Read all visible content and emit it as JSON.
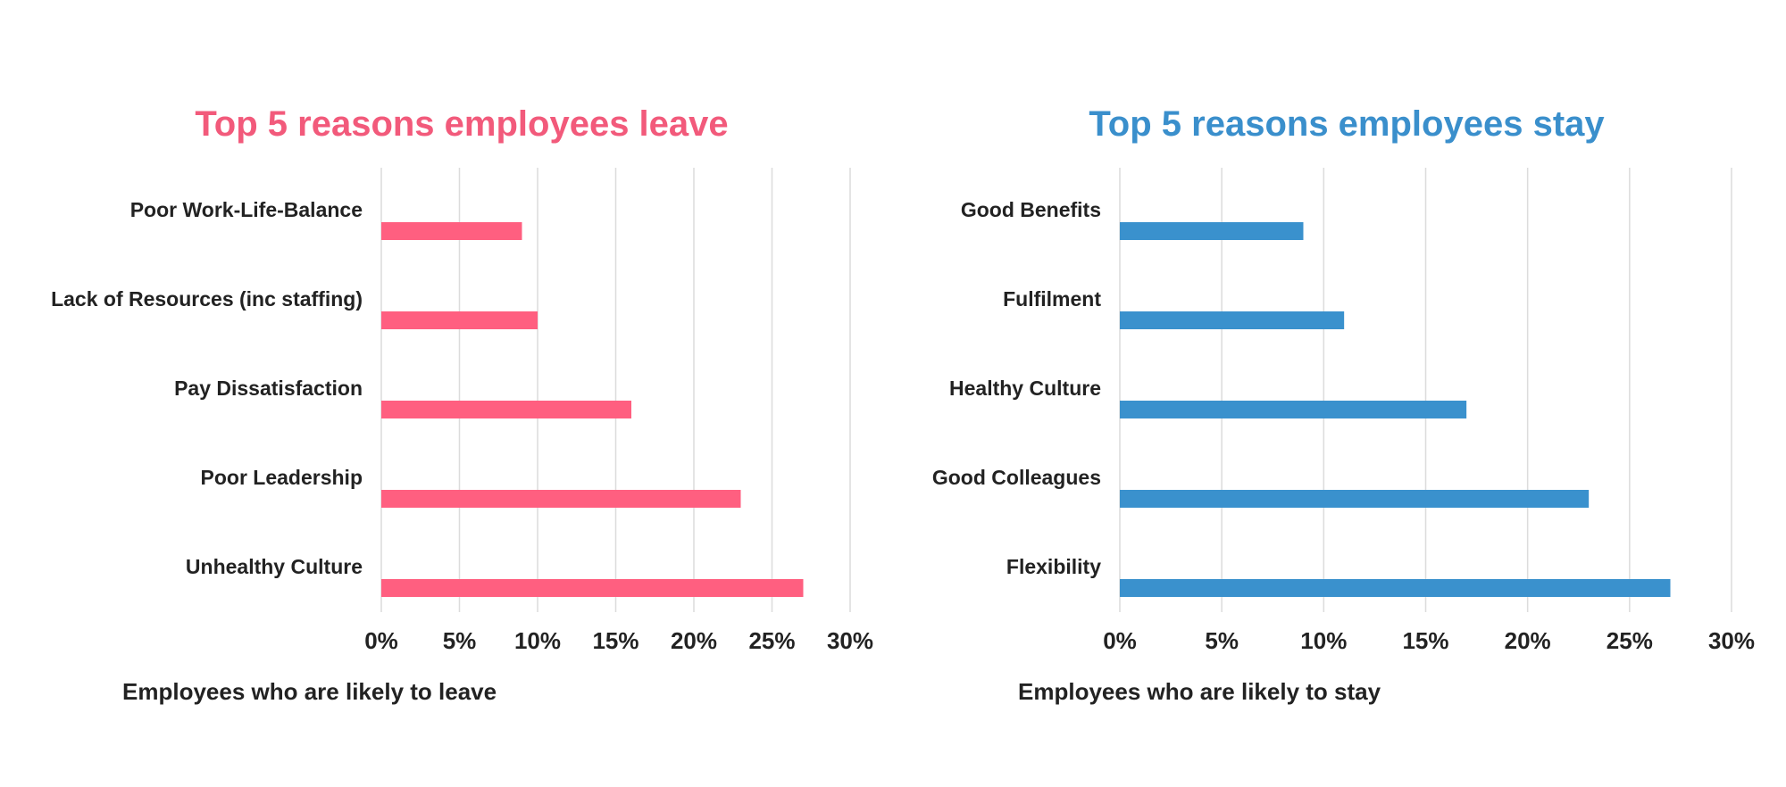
{
  "chart_data": [
    {
      "type": "bar",
      "orientation": "horizontal",
      "title": "Top 5 reasons employees leave",
      "xlabel": "Employees who are likely to leave",
      "ylabel": "",
      "categories": [
        "Poor Work-Life-Balance",
        "Lack of Resources (inc staffing)",
        "Pay Dissatisfaction",
        "Poor Leadership",
        "Unhealthy Culture"
      ],
      "values": [
        9,
        10,
        16,
        23,
        27
      ],
      "unit": "%",
      "xlim": [
        0,
        30
      ],
      "ticks": [
        "0%",
        "5%",
        "10%",
        "15%",
        "20%",
        "25%",
        "30%"
      ],
      "grid": "vertical",
      "legend": "none",
      "colors": {
        "bar": "#ff5f80",
        "title": "#f25a7b"
      }
    },
    {
      "type": "bar",
      "orientation": "horizontal",
      "title": "Top 5 reasons employees stay",
      "xlabel": "Employees who are likely to stay",
      "ylabel": "",
      "categories": [
        "Good Benefits",
        "Fulfilment",
        "Healthy Culture",
        "Good Colleagues",
        "Flexibility"
      ],
      "values": [
        9,
        11,
        17,
        23,
        27
      ],
      "unit": "%",
      "xlim": [
        0,
        30
      ],
      "ticks": [
        "0%",
        "5%",
        "10%",
        "15%",
        "20%",
        "25%",
        "30%"
      ],
      "grid": "vertical",
      "legend": "none",
      "colors": {
        "bar": "#3a91cd",
        "title": "#3a8fcc"
      }
    }
  ]
}
